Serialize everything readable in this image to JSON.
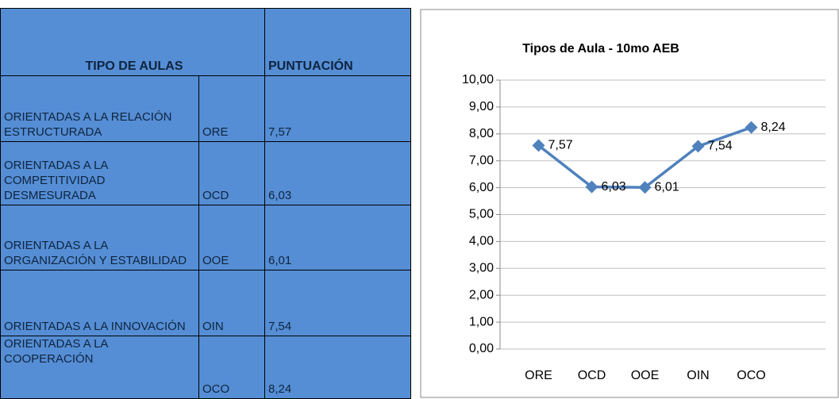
{
  "table": {
    "header": [
      "TIPO DE AULAS",
      "PUNTUACIÓN"
    ],
    "rows": [
      [
        "ORIENTADAS A LA RELACIÓN ESTRUCTURADA",
        "ORE",
        "7,57"
      ],
      [
        "ORIENTADAS A LA COMPETITIVIDAD DESMESURADA",
        "OCD",
        "6,03"
      ],
      [
        "ORIENTADAS A LA ORGANIZACIÓN Y ESTABILIDAD",
        "OOE",
        "6,01"
      ],
      [
        "ORIENTADAS A LA INNOVACIÓN",
        "OIN",
        "7,54"
      ],
      [
        "ORIENTADAS A LA COOPERACIÓN",
        "OCO",
        "8,24"
      ]
    ]
  },
  "chart_data": {
    "type": "line",
    "title": "Tipos de Aula - 10mo AEB",
    "categories": [
      "ORE",
      "OCD",
      "OOE",
      "OIN",
      "OCO"
    ],
    "values": [
      7.57,
      6.03,
      6.01,
      7.54,
      8.24
    ],
    "value_labels": [
      "7,57",
      "6,03",
      "6,01",
      "7,54",
      "8,24"
    ],
    "color": "#4f81bd",
    "ylim": [
      0,
      10
    ],
    "yticks": [
      {
        "value": 0,
        "label": "0,00"
      },
      {
        "value": 1,
        "label": "1,00"
      },
      {
        "value": 2,
        "label": "2,00"
      },
      {
        "value": 3,
        "label": "3,00"
      },
      {
        "value": 4,
        "label": "4,00"
      },
      {
        "value": 5,
        "label": "5,00"
      },
      {
        "value": 6,
        "label": "6,00"
      },
      {
        "value": 7,
        "label": "7,00"
      },
      {
        "value": 8,
        "label": "8,00"
      },
      {
        "value": 9,
        "label": "9,00"
      },
      {
        "value": 10,
        "label": "10,00"
      }
    ],
    "grid": true
  }
}
